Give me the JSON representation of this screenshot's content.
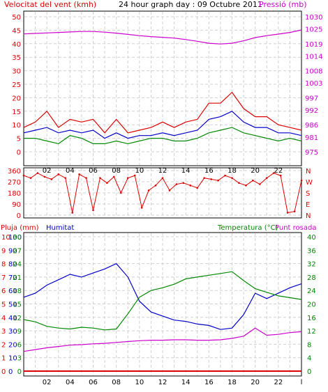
{
  "header": {
    "wind_label": "Velocitat del vent (kmh)",
    "title": "24 hour graph day : 09 Octubre 2011",
    "pressure_label": "Pressió (mb)"
  },
  "colors": {
    "wind_red": "#dd0000",
    "wind_blue": "#0000cc",
    "wind_green": "#008800",
    "pressure_magenta": "#cc00cc",
    "grid": "#d0d0d0",
    "frame": "#000000"
  },
  "x_axis": {
    "ticks": [
      "02",
      "04",
      "06",
      "08",
      "10",
      "12",
      "14",
      "16",
      "18",
      "20",
      "22",
      "l"
    ]
  },
  "chart_data": [
    {
      "type": "line",
      "panel": "wind-pressure",
      "x_range_hours": [
        0,
        24
      ],
      "left_axis": {
        "label": "Velocitat del vent (kmh)",
        "ticks": [
          "0",
          "5",
          "10",
          "15",
          "20",
          "25",
          "30",
          "35",
          "40",
          "45",
          "50"
        ],
        "range": [
          0,
          50
        ]
      },
      "right_axis": {
        "label": "Pressió (mb)",
        "ticks": [
          "975",
          "981",
          "986",
          "992",
          "997",
          "1003",
          "1008",
          "1014",
          "1019",
          "1025",
          "1030"
        ],
        "range": [
          975,
          1030
        ]
      },
      "grid": true,
      "series": [
        {
          "x": [
            0,
            1,
            2,
            3,
            4,
            5,
            6,
            7,
            8,
            9,
            10,
            11,
            12,
            13,
            14,
            15,
            16,
            17,
            18,
            19,
            20,
            21,
            22,
            23,
            24
          ],
          "y": [
            9,
            11,
            15,
            9,
            12,
            11,
            12,
            7,
            12,
            7,
            8,
            9,
            11,
            9,
            11,
            12,
            18,
            18,
            22,
            16,
            13,
            13,
            10,
            9,
            8
          ]
        },
        {
          "x": [
            0,
            1,
            2,
            3,
            4,
            5,
            6,
            7,
            8,
            9,
            10,
            11,
            12,
            13,
            14,
            15,
            16,
            17,
            18,
            19,
            20,
            21,
            22,
            23,
            24
          ],
          "y": [
            7,
            8,
            9,
            7,
            8,
            7,
            8,
            5,
            7,
            5,
            6,
            6,
            7,
            6,
            7,
            8,
            12,
            13,
            15,
            11,
            9,
            9,
            7,
            7,
            6
          ]
        },
        {
          "x": [
            0,
            1,
            2,
            3,
            4,
            5,
            6,
            7,
            8,
            9,
            10,
            11,
            12,
            13,
            14,
            15,
            16,
            17,
            18,
            19,
            20,
            21,
            22,
            23,
            24
          ],
          "y": [
            5,
            5,
            4,
            3,
            6,
            5,
            3,
            3,
            4,
            3,
            4,
            5,
            5,
            4,
            4,
            5,
            7,
            8,
            9,
            7,
            6,
            5,
            4,
            5,
            4
          ]
        },
        {
          "name": "Pressió (mb)",
          "x": [
            0,
            1,
            2,
            3,
            4,
            5,
            6,
            7,
            8,
            9,
            10,
            11,
            12,
            13,
            14,
            15,
            16,
            17,
            18,
            19,
            20,
            21,
            22,
            23,
            24
          ],
          "y": [
            1023,
            1023.2,
            1023.4,
            1023.6,
            1023.8,
            1024,
            1024,
            1023.7,
            1023.3,
            1022.8,
            1022.3,
            1021.9,
            1021.6,
            1021.3,
            1020.7,
            1020,
            1019.2,
            1018.9,
            1019.2,
            1020.2,
            1021.5,
            1022.3,
            1022.9,
            1023.6,
            1024.6
          ]
        }
      ]
    },
    {
      "type": "scatter",
      "panel": "wind-direction",
      "left_axis": {
        "ticks": [
          "360",
          "270",
          "180",
          "90",
          "0"
        ],
        "range": [
          0,
          360
        ]
      },
      "right_axis": {
        "ticks": [
          "N",
          "W",
          "S",
          "E",
          "N"
        ]
      },
      "grid": true,
      "x": [
        0,
        0.6,
        1.2,
        1.8,
        2.4,
        3,
        3.6,
        4.2,
        4.8,
        5.4,
        6,
        6.6,
        7.2,
        7.8,
        8.4,
        9,
        9.6,
        10.2,
        10.8,
        11.4,
        12,
        12.6,
        13.2,
        13.8,
        14.4,
        15,
        15.6,
        16.2,
        16.8,
        17.4,
        18,
        18.6,
        19.2,
        19.8,
        20.4,
        21,
        21.6,
        22.2,
        22.8,
        23.4,
        24
      ],
      "y": [
        320,
        300,
        340,
        310,
        290,
        330,
        300,
        20,
        330,
        300,
        40,
        300,
        260,
        310,
        180,
        300,
        320,
        60,
        200,
        240,
        300,
        200,
        250,
        260,
        240,
        220,
        300,
        290,
        280,
        320,
        300,
        260,
        240,
        280,
        250,
        300,
        340,
        320,
        20,
        30,
        280
      ]
    },
    {
      "type": "line",
      "panel": "rain-humidity-temperature",
      "left_axis_rain": {
        "label": "Pluja (mm)",
        "ticks": [
          "0",
          "1",
          "2",
          "3",
          "4",
          "5",
          "6",
          "7",
          "8",
          "9",
          "10"
        ],
        "range": [
          0,
          10
        ]
      },
      "left_axis_humidity": {
        "label": "Humitat",
        "ticks": [
          "0",
          "10",
          "20",
          "30",
          "40",
          "50",
          "60",
          "70",
          "80",
          "90",
          "100"
        ],
        "range": [
          0,
          100
        ]
      },
      "left_axis_temp": {
        "ticks": [
          "0",
          "3",
          "6",
          "9",
          "12",
          "15",
          "18",
          "21",
          "24",
          "27",
          "30"
        ],
        "range": [
          0,
          30
        ]
      },
      "right_axis": {
        "label": "Temperatura (°C)",
        "ticks": [
          "0",
          "4",
          "8",
          "12",
          "16",
          "20",
          "24",
          "28",
          "32",
          "36",
          "40"
        ],
        "range": [
          0,
          40
        ]
      },
      "right_label_2": "Punt rosada",
      "grid": true,
      "series": [
        {
          "name": "Humitat",
          "x": [
            0,
            1,
            2,
            3,
            4,
            5,
            6,
            7,
            8,
            9,
            10,
            11,
            12,
            13,
            14,
            15,
            16,
            17,
            18,
            19,
            20,
            21,
            22,
            23,
            24
          ],
          "y": [
            55,
            58,
            64,
            68,
            72,
            70,
            73,
            76,
            80,
            70,
            52,
            44,
            41,
            38,
            37,
            35,
            34,
            31,
            32,
            42,
            58,
            54,
            58,
            62,
            65
          ]
        },
        {
          "name": "Temperatura (°C)",
          "x": [
            0,
            1,
            2,
            3,
            4,
            5,
            6,
            7,
            8,
            9,
            10,
            11,
            12,
            13,
            14,
            15,
            16,
            17,
            18,
            19,
            20,
            21,
            22,
            23,
            24
          ],
          "y": [
            11.5,
            11,
            10,
            9.6,
            9.4,
            9.8,
            9.6,
            9.2,
            9.4,
            12.8,
            16.5,
            18,
            18.6,
            19.4,
            20.6,
            21,
            21.4,
            21.8,
            22.2,
            20.2,
            18.4,
            17.6,
            16.8,
            16.4,
            16
          ]
        },
        {
          "name": "Punt rosada",
          "x": [
            0,
            1,
            2,
            3,
            4,
            5,
            6,
            7,
            8,
            9,
            10,
            11,
            12,
            13,
            14,
            15,
            16,
            17,
            18,
            19,
            20,
            21,
            22,
            23,
            24
          ],
          "y": [
            4.4,
            4.8,
            5.2,
            5.5,
            5.8,
            5.9,
            6.1,
            6.2,
            6.4,
            6.6,
            6.8,
            6.9,
            6.9,
            7,
            7,
            6.9,
            6.9,
            7,
            7.3,
            7.8,
            9.6,
            8,
            8.2,
            8.6,
            8.8
          ]
        },
        {
          "name": "Pluja (mm)",
          "x": [
            0,
            24
          ],
          "y": [
            0,
            0
          ]
        }
      ]
    }
  ]
}
